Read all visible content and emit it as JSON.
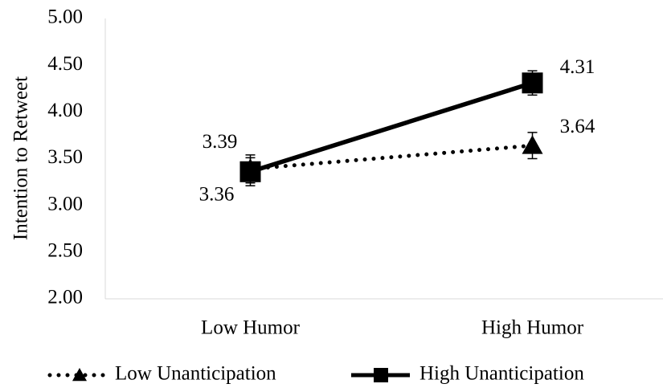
{
  "chart_data": {
    "type": "line",
    "y_label": "Intention to Retweet",
    "categories": [
      "Low Humor",
      "High Humor"
    ],
    "series": [
      {
        "name": "Low Unanticipation",
        "color": "#000000",
        "style": "dotted",
        "marker": "triangle",
        "values": [
          3.39,
          3.64
        ],
        "errors": [
          0.15,
          0.14
        ]
      },
      {
        "name": "High Unanticipation",
        "color": "#000000",
        "style": "solid",
        "marker": "square",
        "values": [
          3.36,
          4.31
        ],
        "errors": [
          0.15,
          0.13
        ]
      }
    ],
    "ylim": [
      2,
      5
    ],
    "yticks": [
      {
        "value": 2,
        "label": "2.00"
      },
      {
        "value": 2.5,
        "label": "2.50"
      },
      {
        "value": 3,
        "label": "3.00"
      },
      {
        "value": 3.5,
        "label": "3.50"
      },
      {
        "value": 4,
        "label": "4.00"
      },
      {
        "value": 4.5,
        "label": "4.50"
      },
      {
        "value": 5,
        "label": "5.00"
      }
    ],
    "legend": "bottom"
  }
}
